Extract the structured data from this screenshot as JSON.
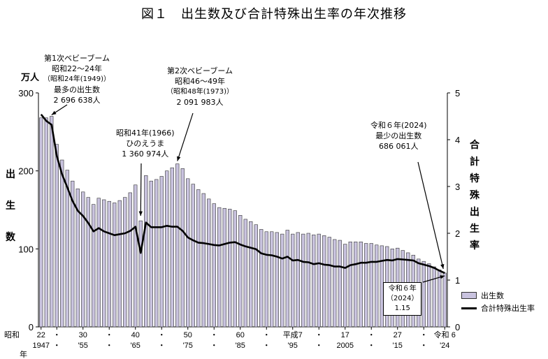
{
  "title": "図１　出生数及び合計特殊出生率の年次推移",
  "chart_data": {
    "type": "bar+line",
    "title": "図１　出生数及び合計特殊出生率の年次推移",
    "left_axis": {
      "label_chars": [
        "出",
        "生",
        "数"
      ],
      "unit": "万人",
      "ylim": [
        0,
        300
      ],
      "ticks": [
        0,
        100,
        200,
        300
      ]
    },
    "right_axis": {
      "label_chars": [
        "合",
        "計",
        "特",
        "殊",
        "出",
        "生",
        "率"
      ],
      "ylim": [
        0,
        5
      ],
      "ticks": [
        0,
        1,
        2,
        3,
        4,
        5
      ]
    },
    "x_tick_labels_top": [
      {
        "year": 1947,
        "label": "22"
      },
      {
        "year": 1950,
        "label": "・"
      },
      {
        "year": 1955,
        "label": "30"
      },
      {
        "year": 1960,
        "label": "・"
      },
      {
        "year": 1965,
        "label": "40"
      },
      {
        "year": 1970,
        "label": "・"
      },
      {
        "year": 1975,
        "label": "50"
      },
      {
        "year": 1980,
        "label": "・"
      },
      {
        "year": 1985,
        "label": "60"
      },
      {
        "year": 1990,
        "label": "・"
      },
      {
        "year": 1995,
        "label": "平成7"
      },
      {
        "year": 2000,
        "label": "・"
      },
      {
        "year": 2005,
        "label": "17"
      },
      {
        "year": 2010,
        "label": "・"
      },
      {
        "year": 2015,
        "label": "27"
      },
      {
        "year": 2020,
        "label": "・"
      },
      {
        "year": 2024,
        "label": "令和 6"
      }
    ],
    "x_tick_labels_bottom": [
      {
        "year": 1947,
        "label": "1947"
      },
      {
        "year": 1950,
        "label": "・"
      },
      {
        "year": 1955,
        "label": "'55"
      },
      {
        "year": 1960,
        "label": "・"
      },
      {
        "year": 1965,
        "label": "'65"
      },
      {
        "year": 1970,
        "label": "・"
      },
      {
        "year": 1975,
        "label": "'75"
      },
      {
        "year": 1980,
        "label": "・"
      },
      {
        "year": 1985,
        "label": "'85"
      },
      {
        "year": 1990,
        "label": "・"
      },
      {
        "year": 1995,
        "label": "'95"
      },
      {
        "year": 2000,
        "label": "・"
      },
      {
        "year": 2005,
        "label": "2005"
      },
      {
        "year": 2010,
        "label": "・"
      },
      {
        "year": 2015,
        "label": "'15"
      },
      {
        "year": 2020,
        "label": "・"
      },
      {
        "year": 2024,
        "label": "'24"
      }
    ],
    "x_era_label_top": "昭和",
    "x_era_label_bottom": "年",
    "years": [
      1947,
      1948,
      1949,
      1950,
      1951,
      1952,
      1953,
      1954,
      1955,
      1956,
      1957,
      1958,
      1959,
      1960,
      1961,
      1962,
      1963,
      1964,
      1965,
      1966,
      1967,
      1968,
      1969,
      1970,
      1971,
      1972,
      1973,
      1974,
      1975,
      1976,
      1977,
      1978,
      1979,
      1980,
      1981,
      1982,
      1983,
      1984,
      1985,
      1986,
      1987,
      1988,
      1989,
      1990,
      1991,
      1992,
      1993,
      1994,
      1995,
      1996,
      1997,
      1998,
      1999,
      2000,
      2001,
      2002,
      2003,
      2004,
      2005,
      2006,
      2007,
      2008,
      2009,
      2010,
      2011,
      2012,
      2013,
      2014,
      2015,
      2016,
      2017,
      2018,
      2019,
      2020,
      2021,
      2022,
      2023,
      2024
    ],
    "series": [
      {
        "name": "出生数",
        "type": "bar",
        "color": "#c9c3df",
        "values": [
          268,
          268,
          270,
          234,
          214,
          201,
          187,
          177,
          173,
          166,
          157,
          165,
          163,
          161,
          159,
          162,
          166,
          172,
          182,
          136,
          194,
          187,
          189,
          193,
          200,
          204,
          209,
          203,
          190,
          183,
          176,
          171,
          164,
          158,
          153,
          152,
          151,
          149,
          143,
          138,
          135,
          131,
          125,
          122,
          122,
          121,
          119,
          124,
          119,
          121,
          119,
          120,
          118,
          119,
          117,
          115,
          112,
          111,
          106,
          109,
          109,
          109,
          107,
          107,
          105,
          104,
          103,
          100,
          101,
          98,
          95,
          92,
          87,
          84,
          81,
          77,
          73,
          69
        ]
      },
      {
        "name": "合計特殊出生率",
        "type": "line",
        "color": "#000000",
        "values": [
          4.54,
          4.4,
          4.32,
          3.65,
          3.26,
          2.98,
          2.69,
          2.48,
          2.37,
          2.22,
          2.04,
          2.11,
          2.04,
          2.0,
          1.96,
          1.98,
          2.0,
          2.05,
          2.14,
          1.58,
          2.23,
          2.13,
          2.13,
          2.13,
          2.16,
          2.14,
          2.14,
          2.05,
          1.91,
          1.85,
          1.8,
          1.79,
          1.77,
          1.75,
          1.74,
          1.77,
          1.8,
          1.81,
          1.76,
          1.72,
          1.69,
          1.66,
          1.57,
          1.54,
          1.53,
          1.5,
          1.46,
          1.5,
          1.42,
          1.43,
          1.39,
          1.38,
          1.34,
          1.36,
          1.33,
          1.32,
          1.29,
          1.29,
          1.26,
          1.32,
          1.34,
          1.37,
          1.37,
          1.39,
          1.39,
          1.41,
          1.43,
          1.42,
          1.45,
          1.44,
          1.43,
          1.42,
          1.36,
          1.33,
          1.3,
          1.26,
          1.2,
          1.15
        ]
      }
    ],
    "legend": [
      "出生数",
      "合計特殊出生率"
    ]
  },
  "annotations": {
    "boom1": {
      "line1": "第1次ベビーブーム",
      "line2": "昭和22～24年",
      "line3": "（昭和24年(1949)）",
      "line4": "最多の出生数",
      "line5": "2 696 638人"
    },
    "hinoe": {
      "line1": "昭和41年(1966)",
      "line2": "ひのえうま",
      "line3": "1 360 974人"
    },
    "boom2": {
      "line1": "第2次ベビーブーム",
      "line2": "昭和46～49年",
      "line3": "（昭和48年(1973)）",
      "line4": "2 091 983人"
    },
    "r6": {
      "line1": "令和６年(2024)",
      "line2": "最少の出生数",
      "line3": "686 061人"
    },
    "callout": {
      "line1": "令和６年",
      "line2": "（2024）",
      "line3": "1.15"
    }
  }
}
